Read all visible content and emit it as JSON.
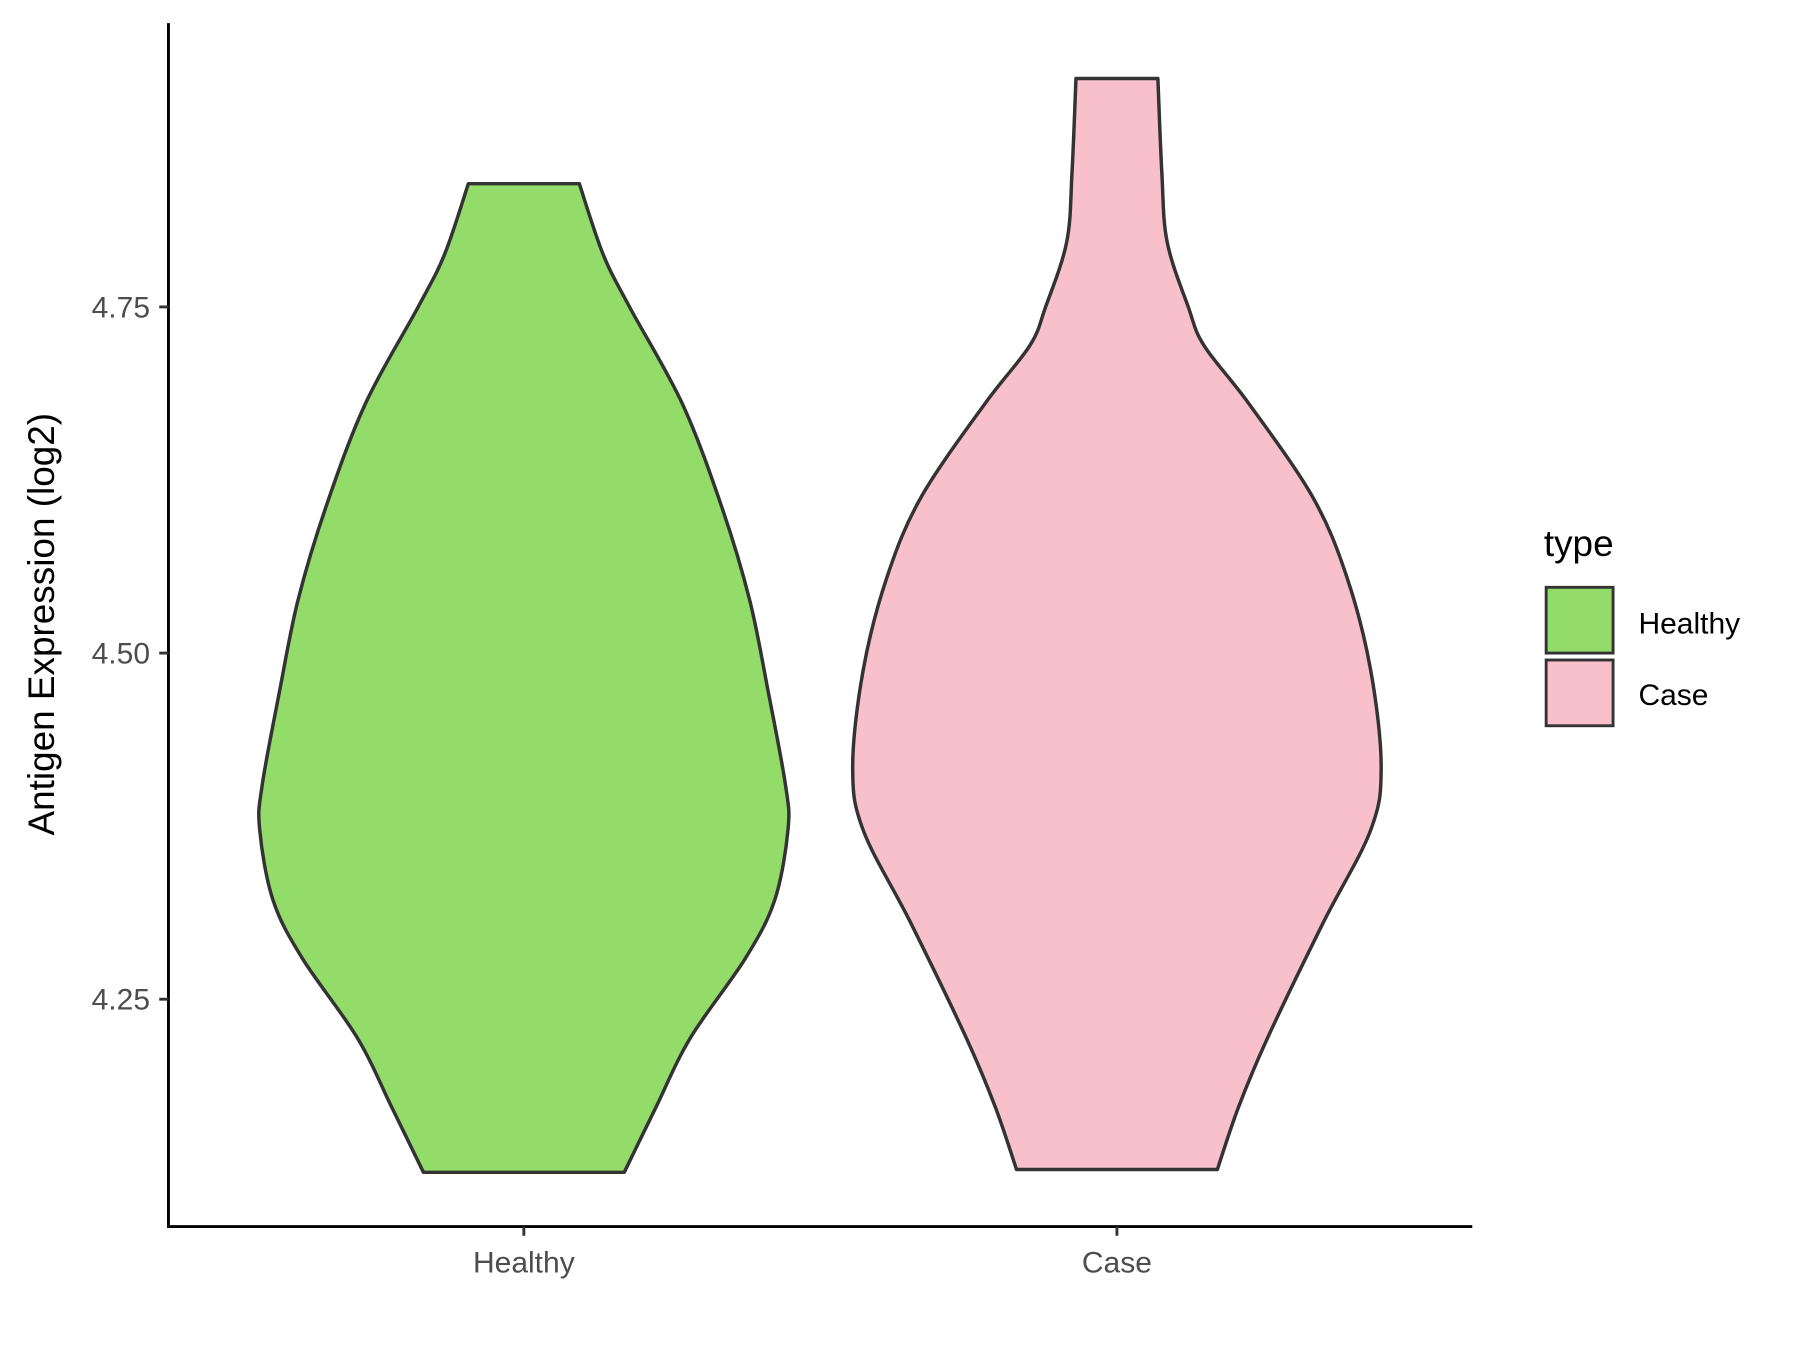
{
  "chart_data": {
    "type": "violin",
    "title": "",
    "xlabel": "",
    "ylabel": "Antigen Expression (log2)",
    "ylim": [
      4.086,
      4.955
    ],
    "yticks": [
      4.25,
      4.5,
      4.75
    ],
    "ytick_labels": [
      "4.25",
      "4.50",
      "4.75"
    ],
    "categories": [
      "Healthy",
      "Case"
    ],
    "grid": false,
    "legend": {
      "title": "type",
      "placement": "right",
      "entries": [
        "Healthy",
        "Case"
      ]
    },
    "series": [
      {
        "name": "Healthy",
        "color": "#93DC6A",
        "min": 4.125,
        "max": 4.839,
        "density_profile": [
          [
            4.839,
            0.21
          ],
          [
            4.788,
            0.3
          ],
          [
            4.75,
            0.4
          ],
          [
            4.68,
            0.6
          ],
          [
            4.605,
            0.75
          ],
          [
            4.538,
            0.855
          ],
          [
            4.472,
            0.925
          ],
          [
            4.405,
            0.99
          ],
          [
            4.373,
            1.0
          ],
          [
            4.322,
            0.95
          ],
          [
            4.28,
            0.84
          ],
          [
            4.222,
            0.63
          ],
          [
            4.172,
            0.5
          ],
          [
            4.125,
            0.38
          ]
        ]
      },
      {
        "name": "Case",
        "color": "#F8C0CB",
        "min": 4.127,
        "max": 4.915,
        "density_profile": [
          [
            4.915,
            0.155
          ],
          [
            4.847,
            0.17
          ],
          [
            4.797,
            0.19
          ],
          [
            4.75,
            0.27
          ],
          [
            4.722,
            0.33
          ],
          [
            4.68,
            0.5
          ],
          [
            4.613,
            0.74
          ],
          [
            4.555,
            0.87
          ],
          [
            4.488,
            0.96
          ],
          [
            4.418,
            1.0
          ],
          [
            4.372,
            0.96
          ],
          [
            4.305,
            0.78
          ],
          [
            4.222,
            0.57
          ],
          [
            4.172,
            0.46
          ],
          [
            4.127,
            0.38
          ]
        ]
      }
    ],
    "outline_color": "#333333"
  }
}
